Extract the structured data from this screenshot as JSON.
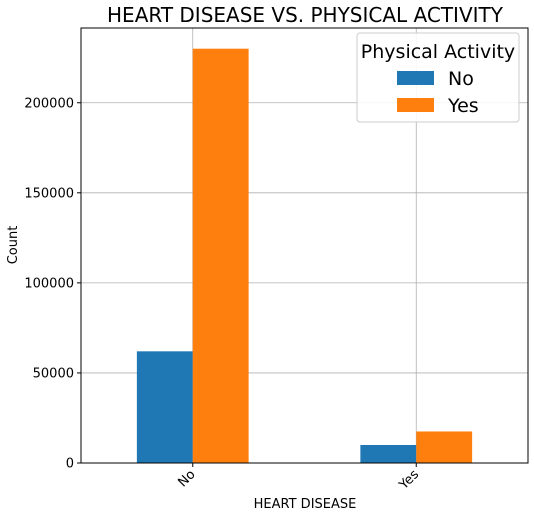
{
  "chart_data": {
    "type": "bar",
    "title": "HEART DISEASE VS. PHYSICAL ACTIVITY",
    "xlabel": "HEART DISEASE",
    "ylabel": "Count",
    "categories": [
      "No",
      "Yes"
    ],
    "series": [
      {
        "name": "No",
        "color": "#1f77b4",
        "values": [
          62000,
          10000
        ]
      },
      {
        "name": "Yes",
        "color": "#ff7f0e",
        "values": [
          230000,
          17500
        ]
      }
    ],
    "ylim": [
      0,
      241500
    ],
    "yticks": [
      0,
      50000,
      100000,
      150000,
      200000
    ],
    "ytick_labels": [
      "0",
      "50000",
      "100000",
      "150000",
      "200000"
    ],
    "grid": true,
    "legend": {
      "title": "Physical Activity",
      "placement": "top-right"
    }
  }
}
